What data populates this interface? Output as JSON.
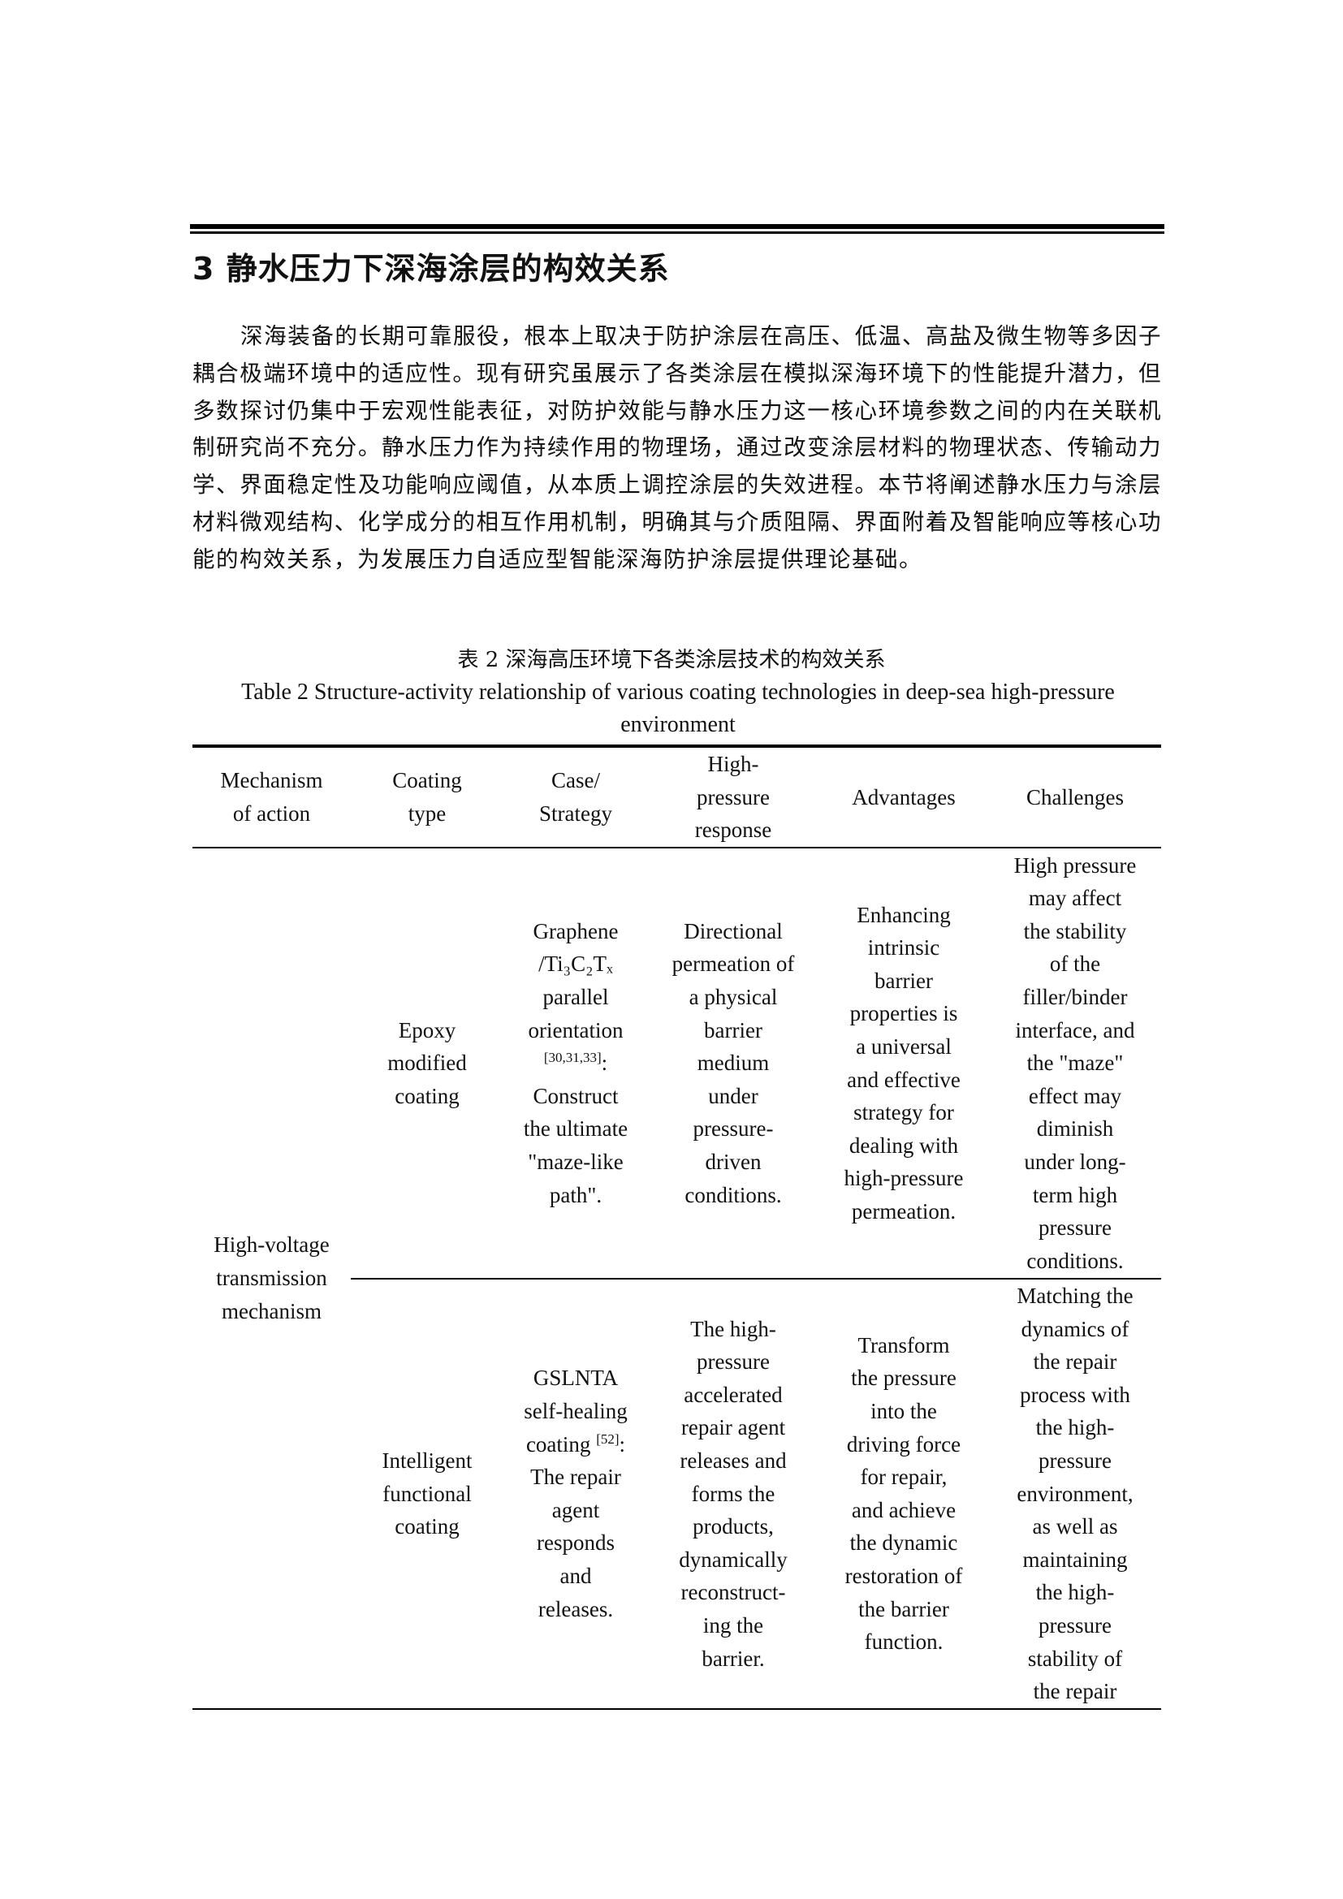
{
  "section": {
    "heading": "3 静水压力下深海涂层的构效关系",
    "paragraph": "深海装备的长期可靠服役，根本上取决于防护涂层在高压、低温、高盐及微生物等多因子耦合极端环境中的适应性。现有研究虽展示了各类涂层在模拟深海环境下的性能提升潜力，但多数探讨仍集中于宏观性能表征，对防护效能与静水压力这一核心环境参数之间的内在关联机制研究尚不充分。静水压力作为持续作用的物理场，通过改变涂层材料的物理状态、传输动力学、界面稳定性及功能响应阈值，从本质上调控涂层的失效进程。本节将阐述静水压力与涂层材料微观结构、化学成分的相互作用机制，明确其与介质阻隔、界面附着及智能响应等核心功能的构效关系，为发展压力自适应型智能深海防护涂层提供理论基础。"
  },
  "table": {
    "caption_cn": "表 2  深海高压环境下各类涂层技术的构效关系",
    "caption_en": "Table 2 Structure-activity relationship of various coating technologies in deep-sea high-pressure environment",
    "headers": [
      [
        "Mechanism",
        "of action"
      ],
      [
        "Coating",
        "type"
      ],
      [
        "Case/",
        "Strategy"
      ],
      [
        "High-",
        "pressure",
        "response"
      ],
      [
        "Advantages"
      ],
      [
        "Challenges"
      ]
    ],
    "mechanism": [
      "High-voltage",
      "transmission",
      "mechanism"
    ],
    "rows": [
      {
        "coating_type": [
          "Epoxy",
          "modified",
          "coating"
        ],
        "case": [
          "Graphene",
          "/Ti₃C₂Tₓ",
          "parallel",
          "orientation",
          {
            "sup": "[30,31,33]",
            "after": ":"
          },
          "Construct",
          "the ultimate",
          "\"maze-like",
          "path\"."
        ],
        "response": [
          "Directional",
          "permeation of",
          "a physical",
          "barrier",
          "medium",
          "under",
          "pressure-",
          "driven",
          "conditions."
        ],
        "advantages": [
          "Enhancing",
          "intrinsic",
          "barrier",
          "properties is",
          "a universal",
          "and effective",
          "strategy for",
          "dealing with",
          "high-pressure",
          "permeation."
        ],
        "challenges": [
          "High pressure",
          "may affect",
          "the stability",
          "of the",
          "filler/binder",
          "interface, and",
          "the \"maze\"",
          "effect may",
          "diminish",
          "under long-",
          "term high",
          "pressure",
          "conditions."
        ]
      },
      {
        "coating_type": [
          "Intelligent",
          "functional",
          "coating"
        ],
        "case": [
          "GSLNTA",
          "self-healing",
          {
            "text": "coating ",
            "sup": "[52]",
            "after": ":"
          },
          "The repair",
          "agent",
          "responds",
          "and",
          "releases."
        ],
        "response": [
          "The high-",
          "pressure",
          "accelerated",
          "repair agent",
          "releases and",
          "forms the",
          "products,",
          "dynamically",
          "reconstruct-",
          "ing the",
          "barrier."
        ],
        "advantages": [
          "Transform",
          "the pressure",
          "into the",
          "driving force",
          "for repair,",
          "and achieve",
          "the dynamic",
          "restoration of",
          "the barrier",
          "function."
        ],
        "challenges": [
          "Matching the",
          "dynamics of",
          "the repair",
          "process with",
          "the high-",
          "pressure",
          "environment,",
          "as well as",
          "maintaining",
          "the high-",
          "pressure",
          "stability of",
          "the repair"
        ]
      }
    ]
  }
}
